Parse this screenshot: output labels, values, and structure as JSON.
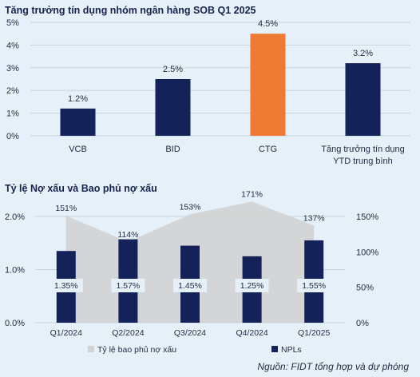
{
  "source": "Nguồn: FIDT tổng hợp và dự phóng",
  "chart_data": [
    {
      "type": "bar",
      "title": "Tăng trưởng tín dụng nhóm ngân hàng SOB Q1 2025",
      "categories": [
        "VCB",
        "BID",
        "CTG",
        "Tăng trưởng tín dụng YTD trung bình"
      ],
      "values": [
        1.2,
        2.5,
        4.5,
        3.2
      ],
      "value_labels": [
        "1.2%",
        "2.5%",
        "4.5%",
        "3.2%"
      ],
      "ylim": [
        0,
        5
      ],
      "yticks": [
        0,
        1,
        2,
        3,
        4,
        5
      ],
      "ytick_labels": [
        "0%",
        "1%",
        "2%",
        "3%",
        "4%",
        "5%"
      ],
      "colors": [
        "#14225a",
        "#14225a",
        "#ee7a33",
        "#14225a"
      ],
      "grid": true
    },
    {
      "type": "bar",
      "title": "Tỷ lệ Nợ xấu và Bao phủ nợ xấu",
      "categories": [
        "Q1/2024",
        "Q2/2024",
        "Q3/2024",
        "Q4/2024",
        "Q1/2025"
      ],
      "series": [
        {
          "name": "NPLs",
          "type": "bar",
          "axis": "left",
          "values": [
            1.35,
            1.57,
            1.45,
            1.25,
            1.55
          ],
          "value_labels": [
            "1.35%",
            "1.57%",
            "1.45%",
            "1.25%",
            "1.55%"
          ],
          "color": "#14225a"
        },
        {
          "name": "Tỷ lệ bao phủ nợ xấu",
          "type": "area",
          "axis": "right",
          "values": [
            151,
            114,
            153,
            171,
            137
          ],
          "value_labels": [
            "151%",
            "114%",
            "153%",
            "171%",
            "137%"
          ],
          "color": "#d2d2d2"
        }
      ],
      "ylim_left": [
        0,
        2.0
      ],
      "yticks_left": [
        0,
        1.0,
        2.0
      ],
      "ytick_labels_left": [
        "0.0%",
        "1.0%",
        "2.0%"
      ],
      "ylim_right": [
        0,
        150
      ],
      "yticks_right": [
        0,
        50,
        100,
        150
      ],
      "ytick_labels_right": [
        "0%",
        "50%",
        "100%",
        "150%"
      ],
      "legend": "bottom",
      "grid": true
    }
  ]
}
